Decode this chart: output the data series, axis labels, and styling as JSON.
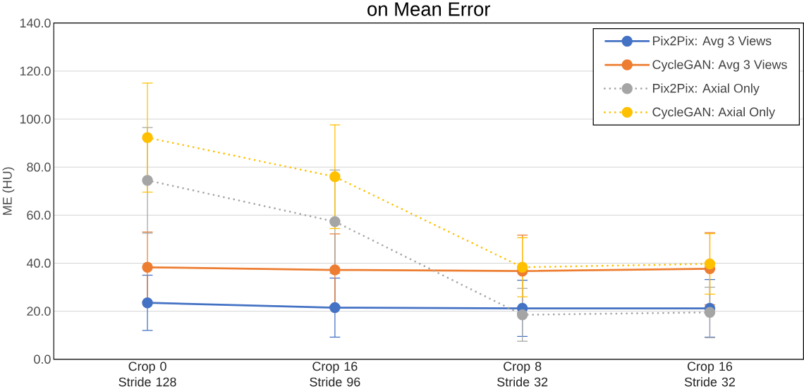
{
  "chart_data": {
    "type": "line",
    "title": "on Mean Error",
    "ylabel": "ME (HU)",
    "categories": [
      "Crop 0 Stride 128",
      "Crop 16 Stride 96",
      "Crop 8 Stride 32",
      "Crop 16 Stride 32"
    ],
    "series": [
      {
        "name": "Pix2Pix: Avg 3 Views",
        "color": "#4472c4",
        "values": [
          23.5,
          21.5,
          21.2,
          21.2
        ],
        "errors": [
          11.5,
          12.3,
          11.7,
          12
        ]
      },
      {
        "name": "CycleGAN: Avg 3 Views",
        "color": "#ed7d31",
        "values": [
          38.3,
          37.2,
          36.7,
          37.7
        ],
        "errors": [
          14.7,
          15,
          15,
          15
        ]
      },
      {
        "name": "Pix2Pix: Axial Only",
        "color": "#a5a5a5",
        "values": [
          74.5,
          57.3,
          18.5,
          19.5
        ],
        "errors": [
          22,
          21.5,
          11,
          10.5
        ],
        "line_style": "dotted"
      },
      {
        "name": "CycleGAN: Axial Only",
        "color": "#ffc000",
        "values": [
          92.3,
          76,
          38.3,
          39.7
        ],
        "errors": [
          22.7,
          21.6,
          12.3,
          12.6
        ],
        "line_style": "dotted"
      }
    ],
    "ylim": [
      0,
      140
    ],
    "yticks": [
      {
        "value": 0,
        "label": "0.0"
      },
      {
        "value": 20,
        "label": "20.0"
      },
      {
        "value": 40,
        "label": "40.0"
      },
      {
        "value": 60,
        "label": "60.0"
      },
      {
        "value": 80,
        "label": "80.0"
      },
      {
        "value": 100,
        "label": "100.0"
      },
      {
        "value": 120,
        "label": "120.0"
      },
      {
        "value": 140,
        "label": "140.0"
      }
    ],
    "grid": "y",
    "legend": "top right",
    "marker": "circle",
    "line_style": "solid"
  }
}
